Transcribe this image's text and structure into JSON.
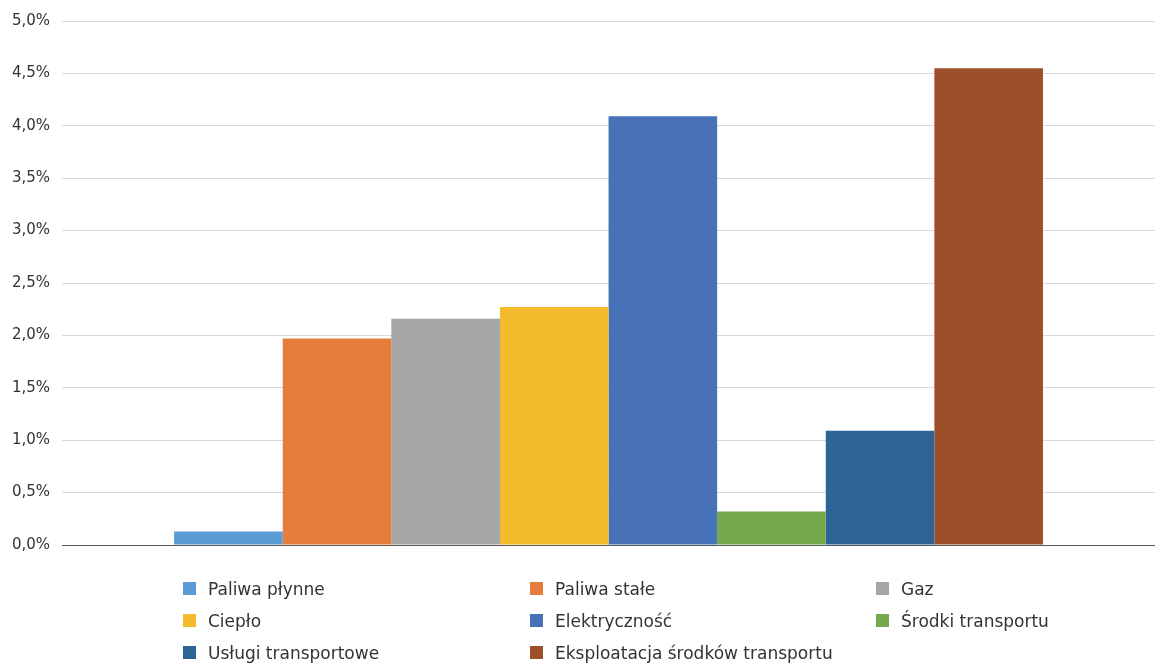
{
  "chart_data": {
    "type": "bar",
    "categories": [
      null
    ],
    "series": [
      {
        "name": "Paliwa płynne",
        "color": "#5b9bd5",
        "values": [
          0.13
        ]
      },
      {
        "name": "Paliwa stałe",
        "color": "#e57e3c",
        "values": [
          1.97
        ]
      },
      {
        "name": "Gaz",
        "color": "#a5a5a8",
        "values": [
          2.16
        ]
      },
      {
        "name": "Ciepło",
        "color": "#f4bc2c",
        "values": [
          2.27
        ]
      },
      {
        "name": "Elektryczność",
        "color": "#4872b8",
        "values": [
          4.09
        ]
      },
      {
        "name": "Środki transportu",
        "color": "#76a84e",
        "values": [
          0.32
        ]
      },
      {
        "name": "Usługi transportowe",
        "color": "#2e6395",
        "values": [
          1.09
        ]
      },
      {
        "name": "Eksploatacja środków transportu",
        "color": "#9c4f28",
        "values": [
          4.55
        ]
      }
    ],
    "ylim": [
      0,
      5
    ],
    "yticks": [
      {
        "value": 0,
        "label": "0,0%"
      },
      {
        "value": 0.5,
        "label": "0,5%"
      },
      {
        "value": 1,
        "label": "1,0%"
      },
      {
        "value": 1.5,
        "label": "1,5%"
      },
      {
        "value": 2,
        "label": "2,0%"
      },
      {
        "value": 2.5,
        "label": "2,5%"
      },
      {
        "value": 3,
        "label": "3,0%"
      },
      {
        "value": 3.5,
        "label": "3,5%"
      },
      {
        "value": 4,
        "label": "4,0%"
      },
      {
        "value": 4.5,
        "label": "4,5%"
      },
      {
        "value": 5,
        "label": "5,0%"
      }
    ],
    "grid": "y",
    "legend": "bottom"
  }
}
